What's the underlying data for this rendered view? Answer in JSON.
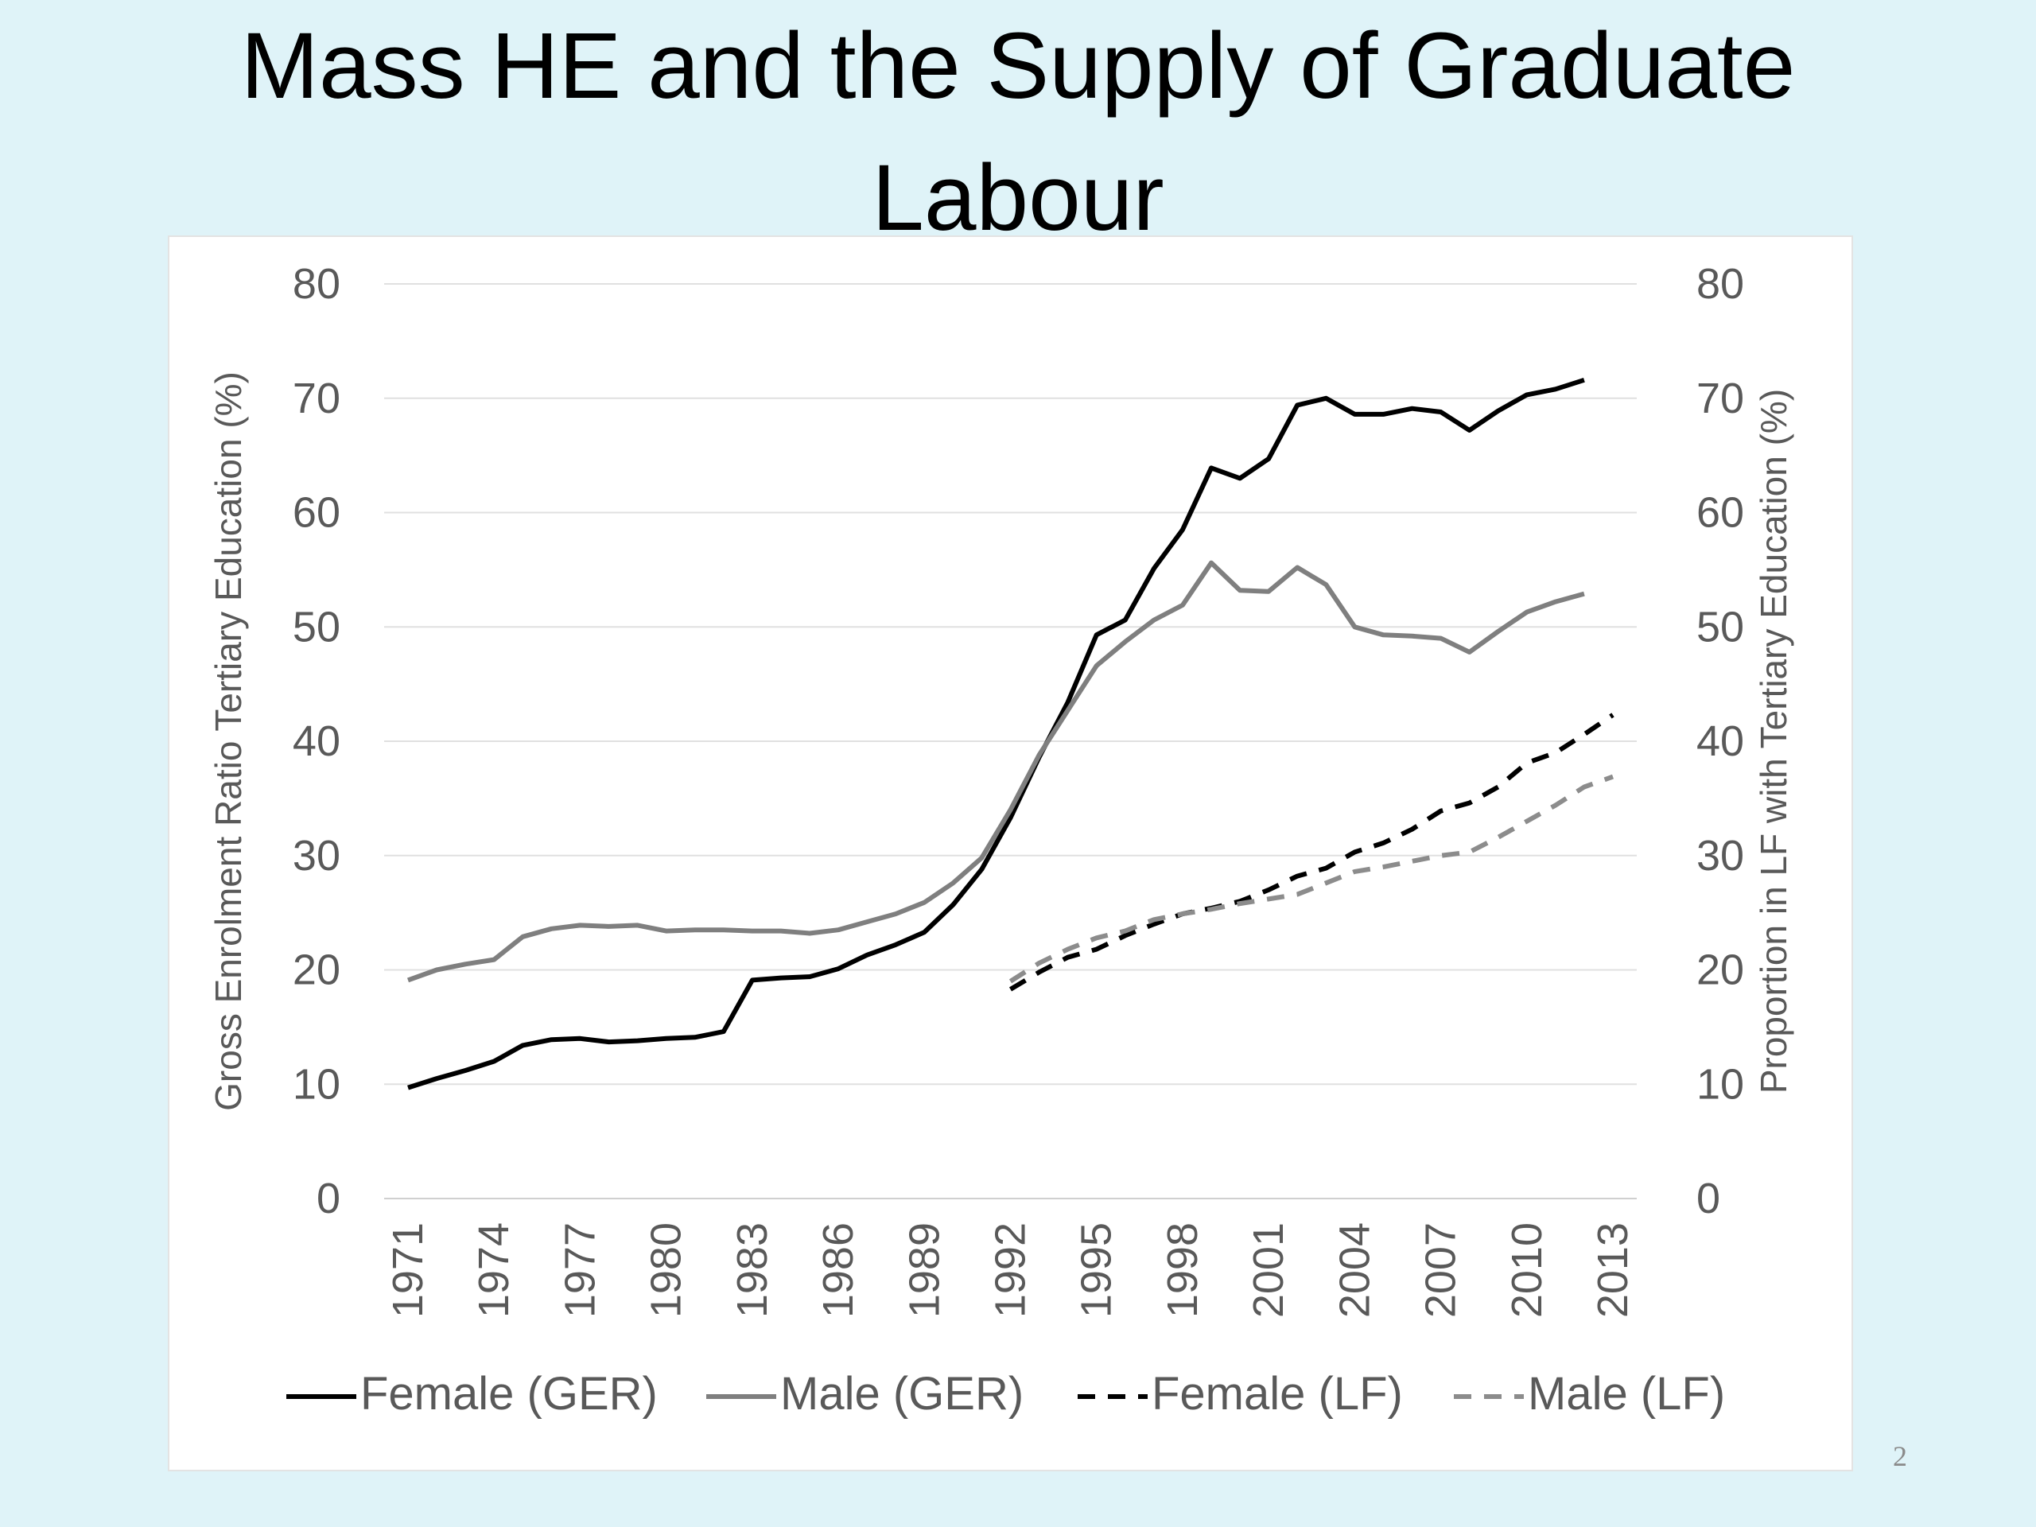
{
  "slide": {
    "title": "Mass HE and the Supply of Graduate Labour",
    "page_number": "2"
  },
  "chart_data": {
    "type": "line",
    "title": "",
    "x_tick_labels": [
      "1971",
      "1974",
      "1977",
      "1980",
      "1983",
      "1986",
      "1989",
      "1992",
      "1995",
      "1998",
      "2001",
      "2004",
      "2007",
      "2010",
      "2013"
    ],
    "ylabel_left": "Gross Enrolment Ratio Tertiary Education (%)",
    "ylabel_right": "Proportion in LF with Tertiary Education (%)",
    "ylim": [
      0,
      80
    ],
    "y_ticks": [
      0,
      10,
      20,
      30,
      40,
      50,
      60,
      70,
      80
    ],
    "grid": true,
    "legend_position": "bottom",
    "series": [
      {
        "name": "Female (GER)",
        "color": "#000000",
        "dash": "solid",
        "x": [
          1971,
          1972,
          1973,
          1974,
          1975,
          1976,
          1977,
          1978,
          1979,
          1980,
          1981,
          1982,
          1983,
          1984,
          1985,
          1986,
          1987,
          1988,
          1989,
          1990,
          1991,
          1992,
          1993,
          1994,
          1995,
          1996,
          1997,
          1998,
          1999,
          2000,
          2001,
          2002,
          2003,
          2004,
          2005,
          2006,
          2007,
          2008,
          2009,
          2010,
          2011,
          2012
        ],
        "values": [
          9.7,
          10.5,
          11.2,
          12,
          13.4,
          13.9,
          14,
          13.7,
          13.8,
          14,
          14.1,
          14.6,
          19.1,
          19.3,
          19.4,
          20.1,
          21.3,
          22.2,
          23.3,
          25.7,
          28.8,
          33.3,
          38.6,
          43.4,
          49.3,
          50.6,
          55.1,
          58.5,
          63.9,
          63.0,
          64.7,
          69.4,
          70.0,
          68.6,
          68.6,
          69.1,
          68.8,
          67.2,
          68.9,
          70.3,
          70.8,
          71.6
        ]
      },
      {
        "name": "Male (GER)",
        "color": "#7f7f7f",
        "dash": "solid",
        "x": [
          1971,
          1972,
          1973,
          1974,
          1975,
          1976,
          1977,
          1978,
          1979,
          1980,
          1981,
          1982,
          1983,
          1984,
          1985,
          1986,
          1987,
          1988,
          1989,
          1990,
          1991,
          1992,
          1993,
          1994,
          1995,
          1996,
          1997,
          1998,
          1999,
          2000,
          2001,
          2002,
          2003,
          2004,
          2005,
          2006,
          2007,
          2008,
          2009,
          2010,
          2011,
          2012
        ],
        "values": [
          19.1,
          20.0,
          20.5,
          20.9,
          22.9,
          23.6,
          23.9,
          23.8,
          23.9,
          23.4,
          23.5,
          23.5,
          23.4,
          23.4,
          23.2,
          23.5,
          24.2,
          24.9,
          25.9,
          27.6,
          29.8,
          34.0,
          38.8,
          42.7,
          46.6,
          48.7,
          50.6,
          51.9,
          55.6,
          53.2,
          53.1,
          55.2,
          53.7,
          50.0,
          49.3,
          49.2,
          49.0,
          47.8,
          49.6,
          51.3,
          52.2,
          52.9
        ]
      },
      {
        "name": "Female (LF)",
        "color": "#000000",
        "dash": "dashed",
        "x": [
          1992,
          1993,
          1994,
          1995,
          1996,
          1997,
          1998,
          1999,
          2000,
          2001,
          2002,
          2003,
          2004,
          2005,
          2006,
          2007,
          2008,
          2009,
          2010,
          2011,
          2012,
          2013
        ],
        "values": [
          18.3,
          19.8,
          21.1,
          21.8,
          23.0,
          24.0,
          24.9,
          25.4,
          26.0,
          27.0,
          28.2,
          28.9,
          30.3,
          31.1,
          32.3,
          33.9,
          34.6,
          36.0,
          38.1,
          39.0,
          40.6,
          42.3
        ]
      },
      {
        "name": "Male (LF)",
        "color": "#8c8c8c",
        "dash": "dashed",
        "x": [
          1992,
          1993,
          1994,
          1995,
          1996,
          1997,
          1998,
          1999,
          2000,
          2001,
          2002,
          2003,
          2004,
          2005,
          2006,
          2007,
          2008,
          2009,
          2010,
          2011,
          2012,
          2013
        ],
        "values": [
          19.0,
          20.6,
          21.8,
          22.8,
          23.4,
          24.4,
          24.9,
          25.3,
          25.8,
          26.2,
          26.6,
          27.6,
          28.6,
          29.0,
          29.5,
          30.0,
          30.3,
          31.6,
          33.0,
          34.4,
          36.0,
          36.9
        ]
      }
    ]
  }
}
